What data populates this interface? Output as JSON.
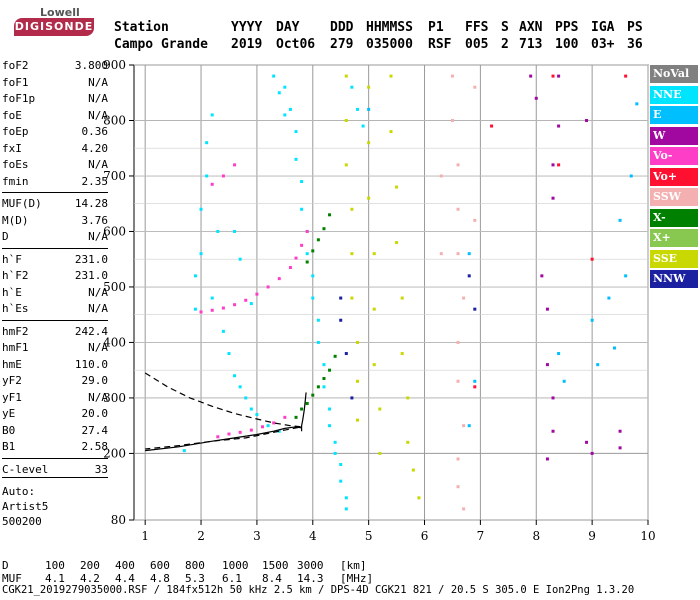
{
  "logo": {
    "top": "Lowell",
    "main": "DIGISONDE"
  },
  "header": {
    "row1": [
      "Station",
      "YYYY",
      "DAY",
      "DDD",
      "HHMMSS",
      "P1",
      "FFS",
      "S",
      "AXN",
      "PPS",
      "IGA",
      "PS"
    ],
    "row2": [
      "Campo Grande",
      "2019",
      "Oct06",
      "279",
      "035000",
      "RSF",
      "005",
      "2",
      "713",
      "100",
      "03+",
      "36"
    ]
  },
  "params": [
    {
      "k": "foF2",
      "v": "3.800"
    },
    {
      "k": "foF1",
      "v": "N/A"
    },
    {
      "k": "foF1p",
      "v": "N/A"
    },
    {
      "k": "foE",
      "v": "N/A"
    },
    {
      "k": "foEp",
      "v": "0.36"
    },
    {
      "k": "fxI",
      "v": "4.20"
    },
    {
      "k": "foEs",
      "v": "N/A"
    },
    {
      "k": "fmin",
      "v": "2.35"
    },
    {
      "k": "MUF(D)",
      "v": "14.28"
    },
    {
      "k": "M(D)",
      "v": "3.76"
    },
    {
      "k": "D",
      "v": "N/A"
    },
    {
      "k": "h`F",
      "v": "231.0"
    },
    {
      "k": "h`F2",
      "v": "231.0"
    },
    {
      "k": "h`E",
      "v": "N/A"
    },
    {
      "k": "h`Es",
      "v": "N/A"
    },
    {
      "k": "hmF2",
      "v": "242.4"
    },
    {
      "k": "hmF1",
      "v": "N/A"
    },
    {
      "k": "hmE",
      "v": "110.0"
    },
    {
      "k": "yF2",
      "v": "29.0"
    },
    {
      "k": "yF1",
      "v": "N/A"
    },
    {
      "k": "yE",
      "v": "20.0"
    },
    {
      "k": "B0",
      "v": "27.4"
    },
    {
      "k": "B1",
      "v": "2.58"
    },
    {
      "k": "C-level",
      "v": "33"
    }
  ],
  "auto": [
    "Auto:",
    "Artist5",
    "500200"
  ],
  "legend": [
    {
      "label": "NoVal",
      "color": "#808080"
    },
    {
      "label": "NNE",
      "color": "#00e5ff"
    },
    {
      "label": "E",
      "color": "#00bfff"
    },
    {
      "label": "W",
      "color": "#a0089f"
    },
    {
      "label": "Vo-",
      "color": "#ff3ec8"
    },
    {
      "label": "Vo+",
      "color": "#ff1030"
    },
    {
      "label": "SSW",
      "color": "#f4b0b0"
    },
    {
      "label": "X-",
      "color": "#008000"
    },
    {
      "label": "X+",
      "color": "#88c850"
    },
    {
      "label": "SSE",
      "color": "#c8d800"
    },
    {
      "label": "NNW",
      "color": "#1a20a0"
    }
  ],
  "footer": {
    "d_row": {
      "label": "D",
      "values": [
        "100",
        "200",
        "400",
        "600",
        "800",
        "1000",
        "1500",
        "3000"
      ],
      "unit": "[km]"
    },
    "muf_row": {
      "label": "MUF",
      "values": [
        "4.1",
        "4.2",
        "4.4",
        "4.8",
        "5.3",
        "6.1",
        "8.4",
        "14.3"
      ],
      "unit": "[MHz]"
    },
    "file_line": "CGK21_2019279035000.RSF / 184fx512h 50 kHz 2.5 km / DPS-4D CGK21 821 / 20.5 S 305.0 E Ion2Png 1.3.20"
  },
  "chart_data": {
    "type": "scatter",
    "title": "",
    "xlabel": "",
    "ylabel": "",
    "xlim": [
      0.8,
      10.0
    ],
    "ylim": [
      80,
      900
    ],
    "x_ticks": [
      1,
      2,
      3,
      4,
      5,
      6,
      7,
      8,
      9,
      10
    ],
    "y_ticks": [
      80,
      200,
      300,
      400,
      500,
      600,
      700,
      800,
      900
    ],
    "grid": true,
    "legend_position": "right",
    "series": [
      {
        "name": "NNE",
        "color": "#00e5ff",
        "points": [
          [
            1.7,
            205
          ],
          [
            1.9,
            520
          ],
          [
            2.0,
            560
          ],
          [
            2.0,
            640
          ],
          [
            2.1,
            700
          ],
          [
            2.1,
            760
          ],
          [
            2.2,
            810
          ],
          [
            2.2,
            480
          ],
          [
            2.3,
            600
          ],
          [
            2.4,
            420
          ],
          [
            2.5,
            380
          ],
          [
            2.6,
            340
          ],
          [
            2.7,
            320
          ],
          [
            2.8,
            300
          ],
          [
            2.9,
            280
          ],
          [
            3.0,
            270
          ],
          [
            3.2,
            250
          ],
          [
            3.4,
            240
          ],
          [
            3.5,
            860
          ],
          [
            3.6,
            820
          ],
          [
            3.7,
            780
          ],
          [
            3.7,
            730
          ],
          [
            3.8,
            690
          ],
          [
            3.8,
            640
          ],
          [
            3.9,
            600
          ],
          [
            3.9,
            560
          ],
          [
            4.0,
            520
          ],
          [
            4.0,
            480
          ],
          [
            4.1,
            440
          ],
          [
            4.1,
            400
          ],
          [
            4.2,
            360
          ],
          [
            4.2,
            320
          ],
          [
            4.3,
            280
          ],
          [
            4.3,
            250
          ],
          [
            4.4,
            220
          ],
          [
            4.4,
            200
          ],
          [
            4.5,
            180
          ],
          [
            4.5,
            150
          ],
          [
            4.6,
            120
          ],
          [
            4.6,
            100
          ],
          [
            4.7,
            860
          ],
          [
            4.8,
            820
          ],
          [
            4.9,
            790
          ],
          [
            3.3,
            880
          ],
          [
            3.4,
            850
          ],
          [
            3.5,
            810
          ],
          [
            1.9,
            460
          ],
          [
            2.6,
            600
          ],
          [
            2.7,
            550
          ],
          [
            2.9,
            470
          ]
        ]
      },
      {
        "name": "E",
        "color": "#00bfff",
        "points": [
          [
            5.0,
            820
          ],
          [
            6.8,
            560
          ],
          [
            6.9,
            330
          ],
          [
            6.8,
            250
          ],
          [
            8.4,
            380
          ],
          [
            8.5,
            330
          ],
          [
            9.0,
            440
          ],
          [
            9.1,
            360
          ],
          [
            9.3,
            480
          ],
          [
            9.4,
            390
          ],
          [
            9.5,
            620
          ],
          [
            9.6,
            520
          ],
          [
            9.7,
            700
          ],
          [
            9.8,
            830
          ]
        ]
      },
      {
        "name": "Vo-",
        "color": "#ff3ec8",
        "points": [
          [
            2.3,
            230
          ],
          [
            2.5,
            235
          ],
          [
            2.7,
            238
          ],
          [
            2.9,
            242
          ],
          [
            3.1,
            248
          ],
          [
            3.3,
            255
          ],
          [
            3.5,
            265
          ],
          [
            2.0,
            455
          ],
          [
            2.2,
            458
          ],
          [
            2.4,
            462
          ],
          [
            2.6,
            468
          ],
          [
            2.8,
            476
          ],
          [
            3.0,
            487
          ],
          [
            3.2,
            500
          ],
          [
            3.4,
            515
          ],
          [
            3.6,
            535
          ],
          [
            3.7,
            552
          ],
          [
            3.8,
            575
          ],
          [
            3.9,
            600
          ],
          [
            2.2,
            685
          ],
          [
            2.4,
            700
          ],
          [
            2.6,
            720
          ]
        ]
      },
      {
        "name": "X-",
        "color": "#008000",
        "points": [
          [
            3.7,
            265
          ],
          [
            3.8,
            280
          ],
          [
            3.9,
            290
          ],
          [
            4.0,
            305
          ],
          [
            4.1,
            320
          ],
          [
            4.2,
            335
          ],
          [
            4.3,
            350
          ],
          [
            4.4,
            375
          ],
          [
            3.9,
            545
          ],
          [
            4.0,
            565
          ],
          [
            4.1,
            585
          ],
          [
            4.2,
            605
          ],
          [
            4.3,
            630
          ]
        ]
      },
      {
        "name": "SSE",
        "color": "#c8d800",
        "points": [
          [
            4.6,
            880
          ],
          [
            4.6,
            800
          ],
          [
            4.6,
            720
          ],
          [
            4.7,
            640
          ],
          [
            4.7,
            560
          ],
          [
            4.7,
            480
          ],
          [
            4.8,
            400
          ],
          [
            4.8,
            330
          ],
          [
            4.8,
            260
          ],
          [
            5.0,
            860
          ],
          [
            5.0,
            760
          ],
          [
            5.0,
            660
          ],
          [
            5.1,
            560
          ],
          [
            5.1,
            460
          ],
          [
            5.1,
            360
          ],
          [
            5.2,
            280
          ],
          [
            5.2,
            200
          ],
          [
            5.4,
            880
          ],
          [
            5.4,
            780
          ],
          [
            5.5,
            680
          ],
          [
            5.5,
            580
          ],
          [
            5.6,
            480
          ],
          [
            5.6,
            380
          ],
          [
            5.7,
            300
          ],
          [
            5.7,
            220
          ],
          [
            5.8,
            170
          ],
          [
            5.9,
            120
          ]
        ]
      },
      {
        "name": "SSW",
        "color": "#f4b0b0",
        "points": [
          [
            6.5,
            880
          ],
          [
            6.5,
            800
          ],
          [
            6.6,
            720
          ],
          [
            6.6,
            640
          ],
          [
            6.6,
            560
          ],
          [
            6.7,
            480
          ],
          [
            6.6,
            400
          ],
          [
            6.6,
            330
          ],
          [
            6.7,
            250
          ],
          [
            6.6,
            190
          ],
          [
            6.6,
            140
          ],
          [
            6.7,
            100
          ],
          [
            6.3,
            700
          ],
          [
            6.3,
            560
          ],
          [
            6.9,
            860
          ],
          [
            6.9,
            620
          ]
        ]
      },
      {
        "name": "W",
        "color": "#a0089f",
        "points": [
          [
            7.9,
            880
          ],
          [
            8.0,
            840
          ],
          [
            8.1,
            520
          ],
          [
            8.2,
            460
          ],
          [
            8.2,
            360
          ],
          [
            8.3,
            300
          ],
          [
            8.3,
            240
          ],
          [
            8.2,
            190
          ],
          [
            8.3,
            660
          ],
          [
            8.3,
            720
          ],
          [
            8.4,
            790
          ],
          [
            8.4,
            880
          ],
          [
            8.9,
            220
          ],
          [
            9.0,
            200
          ],
          [
            9.5,
            240
          ],
          [
            9.5,
            210
          ],
          [
            8.9,
            800
          ]
        ]
      },
      {
        "name": "Vo+",
        "color": "#ff1030",
        "points": [
          [
            8.3,
            880
          ],
          [
            8.4,
            720
          ],
          [
            9.0,
            550
          ],
          [
            9.6,
            880
          ],
          [
            7.2,
            790
          ],
          [
            6.9,
            320
          ]
        ]
      },
      {
        "name": "NNW",
        "color": "#1a20a0",
        "points": [
          [
            4.5,
            480
          ],
          [
            4.5,
            440
          ],
          [
            4.6,
            380
          ],
          [
            4.7,
            300
          ],
          [
            6.8,
            520
          ],
          [
            6.9,
            460
          ]
        ]
      }
    ],
    "curves": [
      {
        "name": "",
        "style": "solid",
        "points": [
          [
            1.0,
            205
          ],
          [
            1.6,
            212
          ],
          [
            2.2,
            222
          ],
          [
            2.6,
            228
          ],
          [
            3.0,
            234
          ],
          [
            3.3,
            240
          ],
          [
            3.5,
            245
          ],
          [
            3.7,
            248
          ],
          [
            3.8,
            246
          ],
          [
            3.8,
            240
          ],
          [
            3.8,
            250
          ],
          [
            3.82,
            260
          ],
          [
            3.85,
            280
          ],
          [
            3.88,
            310
          ]
        ]
      },
      {
        "name": "",
        "style": "dashed",
        "points": [
          [
            1.0,
            345
          ],
          [
            1.4,
            320
          ],
          [
            1.8,
            300
          ],
          [
            2.2,
            285
          ],
          [
            2.6,
            272
          ],
          [
            3.0,
            262
          ],
          [
            3.3,
            255
          ],
          [
            3.6,
            250
          ],
          [
            3.8,
            248
          ],
          [
            3.6,
            244
          ],
          [
            3.2,
            236
          ],
          [
            2.8,
            228
          ],
          [
            2.2,
            222
          ],
          [
            1.6,
            214
          ],
          [
            1.0,
            208
          ]
        ]
      }
    ]
  }
}
